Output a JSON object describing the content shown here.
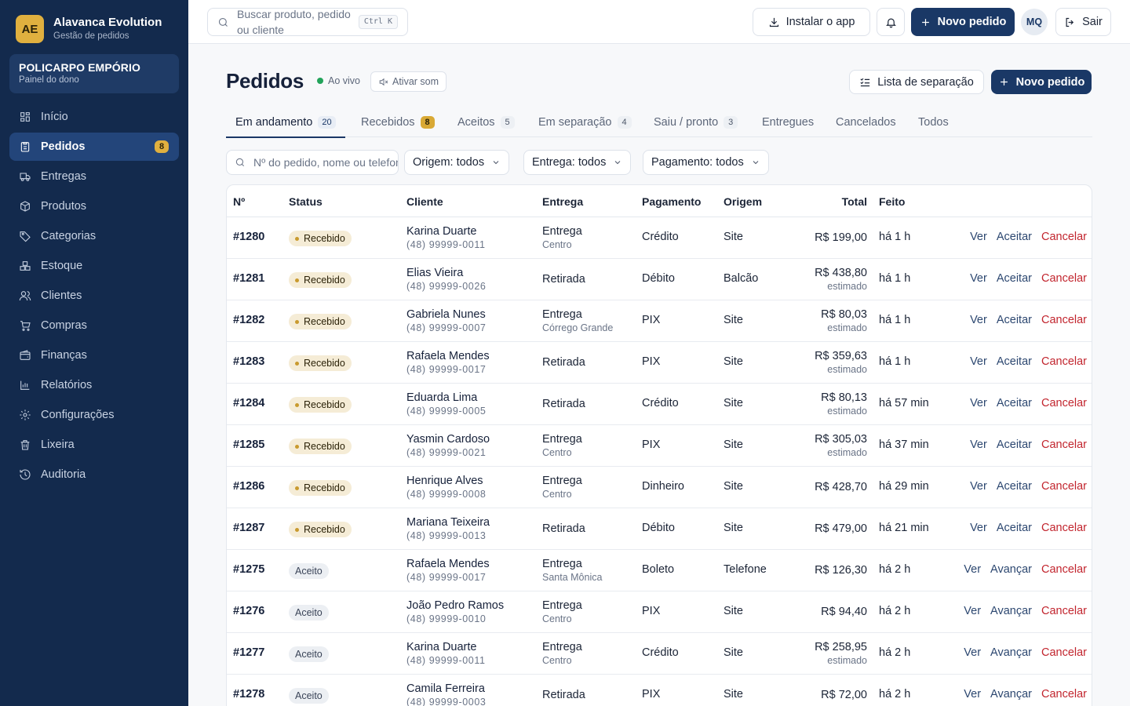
{
  "brand": {
    "logo": "AE",
    "title": "Alavanca Evolution",
    "subtitle": "Gestão de pedidos"
  },
  "store": {
    "name": "POLICARPO EMPÓRIO",
    "subtitle": "Painel do dono"
  },
  "sidebar": {
    "items": [
      {
        "label": "Início",
        "icon": "grid-icon"
      },
      {
        "label": "Pedidos",
        "icon": "clipboard-icon",
        "badge": "8",
        "active": true
      },
      {
        "label": "Entregas",
        "icon": "truck-icon"
      },
      {
        "label": "Produtos",
        "icon": "box-icon"
      },
      {
        "label": "Categorias",
        "icon": "tag-icon"
      },
      {
        "label": "Estoque",
        "icon": "boxes-icon"
      },
      {
        "label": "Clientes",
        "icon": "users-icon"
      },
      {
        "label": "Compras",
        "icon": "cart-icon"
      },
      {
        "label": "Finanças",
        "icon": "wallet-icon"
      },
      {
        "label": "Relatórios",
        "icon": "bar-chart-icon"
      },
      {
        "label": "Configurações",
        "icon": "gear-icon"
      },
      {
        "label": "Lixeira",
        "icon": "trash-icon"
      },
      {
        "label": "Auditoria",
        "icon": "history-icon"
      }
    ]
  },
  "topbar": {
    "search_placeholder": "Buscar produto, pedido ou cliente",
    "search_shortcut": "Ctrl K",
    "install_label": "Instalar o app",
    "new_order_label": "Novo pedido",
    "avatar": "MQ",
    "logout_label": "Sair"
  },
  "page": {
    "title": "Pedidos",
    "live_label": "Ao vivo",
    "sound_label": "Ativar som",
    "picklist_label": "Lista de separação",
    "new_order_label": "Novo pedido"
  },
  "tabs": [
    {
      "label": "Em andamento",
      "count": "20",
      "active": true
    },
    {
      "label": "Recebidos",
      "count": "8",
      "warn": true
    },
    {
      "label": "Aceitos",
      "count": "5"
    },
    {
      "label": "Em separação",
      "count": "4"
    },
    {
      "label": "Saiu / pronto",
      "count": "3"
    },
    {
      "label": "Entregues"
    },
    {
      "label": "Cancelados"
    },
    {
      "label": "Todos"
    }
  ],
  "filters": {
    "search_placeholder": "Nº do pedido, nome ou telefone",
    "origem": "Origem: todos",
    "entrega": "Entrega: todos",
    "pagamento": "Pagamento: todos"
  },
  "table": {
    "headers": {
      "num": "Nº",
      "status": "Status",
      "cliente": "Cliente",
      "entrega": "Entrega",
      "pagamento": "Pagamento",
      "origem": "Origem",
      "total": "Total",
      "feito": "Feito"
    },
    "rows": [
      {
        "num": "#1280",
        "status": "Recebido",
        "status_kind": "recebido",
        "name": "Karina Duarte",
        "phone": "(48) 99999-0011",
        "entrega": "Entrega",
        "bairro": "Centro",
        "pagamento": "Crédito",
        "origem": "Site",
        "total": "R$ 199,00",
        "total_note": "",
        "feito": "há 1 h",
        "actions": [
          "Ver",
          "Aceitar",
          "Cancelar"
        ]
      },
      {
        "num": "#1281",
        "status": "Recebido",
        "status_kind": "recebido",
        "name": "Elias Vieira",
        "phone": "(48) 99999-0026",
        "entrega": "Retirada",
        "bairro": "",
        "pagamento": "Débito",
        "origem": "Balcão",
        "total": "R$ 438,80",
        "total_note": "estimado",
        "feito": "há 1 h",
        "actions": [
          "Ver",
          "Aceitar",
          "Cancelar"
        ]
      },
      {
        "num": "#1282",
        "status": "Recebido",
        "status_kind": "recebido",
        "name": "Gabriela Nunes",
        "phone": "(48) 99999-0007",
        "entrega": "Entrega",
        "bairro": "Córrego Grande",
        "pagamento": "PIX",
        "origem": "Site",
        "total": "R$ 80,03",
        "total_note": "estimado",
        "feito": "há 1 h",
        "actions": [
          "Ver",
          "Aceitar",
          "Cancelar"
        ]
      },
      {
        "num": "#1283",
        "status": "Recebido",
        "status_kind": "recebido",
        "name": "Rafaela Mendes",
        "phone": "(48) 99999-0017",
        "entrega": "Retirada",
        "bairro": "",
        "pagamento": "PIX",
        "origem": "Site",
        "total": "R$ 359,63",
        "total_note": "estimado",
        "feito": "há 1 h",
        "actions": [
          "Ver",
          "Aceitar",
          "Cancelar"
        ]
      },
      {
        "num": "#1284",
        "status": "Recebido",
        "status_kind": "recebido",
        "name": "Eduarda Lima",
        "phone": "(48) 99999-0005",
        "entrega": "Retirada",
        "bairro": "",
        "pagamento": "Crédito",
        "origem": "Site",
        "total": "R$ 80,13",
        "total_note": "estimado",
        "feito": "há 57 min",
        "actions": [
          "Ver",
          "Aceitar",
          "Cancelar"
        ]
      },
      {
        "num": "#1285",
        "status": "Recebido",
        "status_kind": "recebido",
        "name": "Yasmin Cardoso",
        "phone": "(48) 99999-0021",
        "entrega": "Entrega",
        "bairro": "Centro",
        "pagamento": "PIX",
        "origem": "Site",
        "total": "R$ 305,03",
        "total_note": "estimado",
        "feito": "há 37 min",
        "actions": [
          "Ver",
          "Aceitar",
          "Cancelar"
        ]
      },
      {
        "num": "#1286",
        "status": "Recebido",
        "status_kind": "recebido",
        "name": "Henrique Alves",
        "phone": "(48) 99999-0008",
        "entrega": "Entrega",
        "bairro": "Centro",
        "pagamento": "Dinheiro",
        "origem": "Site",
        "total": "R$ 428,70",
        "total_note": "",
        "feito": "há 29 min",
        "actions": [
          "Ver",
          "Aceitar",
          "Cancelar"
        ]
      },
      {
        "num": "#1287",
        "status": "Recebido",
        "status_kind": "recebido",
        "name": "Mariana Teixeira",
        "phone": "(48) 99999-0013",
        "entrega": "Retirada",
        "bairro": "",
        "pagamento": "Débito",
        "origem": "Site",
        "total": "R$ 479,00",
        "total_note": "",
        "feito": "há 21 min",
        "actions": [
          "Ver",
          "Aceitar",
          "Cancelar"
        ]
      },
      {
        "num": "#1275",
        "status": "Aceito",
        "status_kind": "aceito",
        "name": "Rafaela Mendes",
        "phone": "(48) 99999-0017",
        "entrega": "Entrega",
        "bairro": "Santa Mônica",
        "pagamento": "Boleto",
        "origem": "Telefone",
        "total": "R$ 126,30",
        "total_note": "",
        "feito": "há 2 h",
        "actions": [
          "Ver",
          "Avançar",
          "Cancelar"
        ]
      },
      {
        "num": "#1276",
        "status": "Aceito",
        "status_kind": "aceito",
        "name": "João Pedro Ramos",
        "phone": "(48) 99999-0010",
        "entrega": "Entrega",
        "bairro": "Centro",
        "pagamento": "PIX",
        "origem": "Site",
        "total": "R$ 94,40",
        "total_note": "",
        "feito": "há 2 h",
        "actions": [
          "Ver",
          "Avançar",
          "Cancelar"
        ]
      },
      {
        "num": "#1277",
        "status": "Aceito",
        "status_kind": "aceito",
        "name": "Karina Duarte",
        "phone": "(48) 99999-0011",
        "entrega": "Entrega",
        "bairro": "Centro",
        "pagamento": "Crédito",
        "origem": "Site",
        "total": "R$ 258,95",
        "total_note": "estimado",
        "feito": "há 2 h",
        "actions": [
          "Ver",
          "Avançar",
          "Cancelar"
        ]
      },
      {
        "num": "#1278",
        "status": "Aceito",
        "status_kind": "aceito",
        "name": "Camila Ferreira",
        "phone": "(48) 99999-0003",
        "entrega": "Retirada",
        "bairro": "",
        "pagamento": "PIX",
        "origem": "Site",
        "total": "R$ 72,00",
        "total_note": "",
        "feito": "há 2 h",
        "actions": [
          "Ver",
          "Avançar",
          "Cancelar"
        ]
      }
    ]
  },
  "colors": {
    "sidebar_bg": "#132a4d",
    "primary": "#1a3866",
    "accent": "#e0b03f",
    "danger": "#c2252e",
    "live": "#22a35a"
  }
}
